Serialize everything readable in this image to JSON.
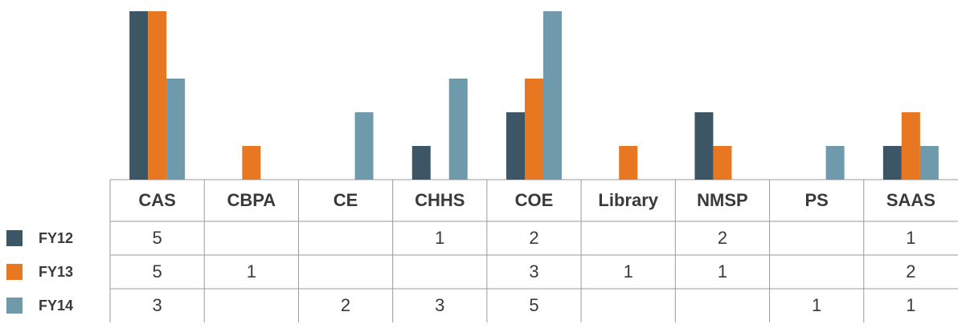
{
  "chart_data": {
    "type": "bar",
    "categories": [
      "CAS",
      "CBPA",
      "CE",
      "CHHS",
      "COE",
      "Library",
      "NMSP",
      "PS",
      "SAAS"
    ],
    "series": [
      {
        "name": "FY12",
        "color": "#3d5666",
        "values": [
          5,
          null,
          null,
          1,
          2,
          null,
          2,
          null,
          1
        ]
      },
      {
        "name": "FY13",
        "color": "#e87722",
        "values": [
          5,
          1,
          null,
          null,
          3,
          1,
          1,
          null,
          2
        ]
      },
      {
        "name": "FY14",
        "color": "#6f9aab",
        "values": [
          3,
          null,
          2,
          3,
          5,
          null,
          null,
          1,
          1
        ]
      }
    ],
    "ylim": [
      0,
      5
    ]
  }
}
